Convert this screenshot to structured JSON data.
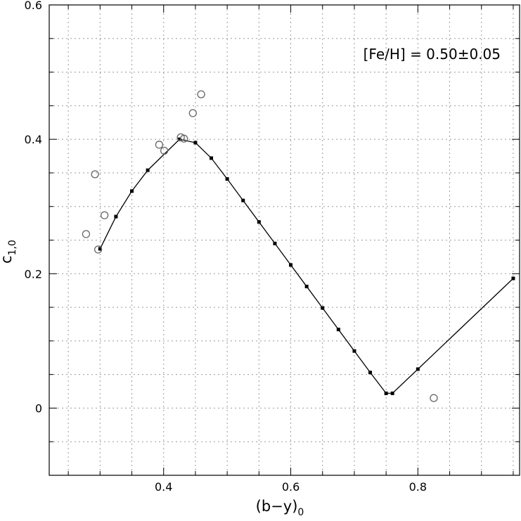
{
  "chart_data": {
    "type": "scatter",
    "annotation": "[Fe/H]  =  0.50±0.05",
    "xlabel": {
      "main": "(b−y)",
      "sub": "0"
    },
    "ylabel": {
      "main": "c",
      "sub": "1,0"
    },
    "xlim": [
      0.22,
      0.96
    ],
    "ylim": [
      -0.1,
      0.6
    ],
    "x_ticks": [
      0.4,
      0.6,
      0.8
    ],
    "x_tick_labels": [
      "0.4",
      "0.6",
      "0.8"
    ],
    "y_ticks": [
      0,
      0.2,
      0.4,
      0.6
    ],
    "y_tick_labels": [
      "0",
      "0.2",
      "0.4",
      "0.6"
    ],
    "grid": true,
    "series": [
      {
        "kind": "line-with-square-markers",
        "x": [
          0.3,
          0.325,
          0.35,
          0.375,
          0.425,
          0.45,
          0.475,
          0.5,
          0.525,
          0.55,
          0.575,
          0.6,
          0.625,
          0.65,
          0.675,
          0.7,
          0.725,
          0.75,
          0.76,
          0.8,
          0.95
        ],
        "y": [
          0.237,
          0.285,
          0.323,
          0.354,
          0.4,
          0.395,
          0.372,
          0.341,
          0.309,
          0.277,
          0.245,
          0.213,
          0.181,
          0.149,
          0.117,
          0.085,
          0.053,
          0.022,
          0.022,
          0.058,
          0.193
        ]
      },
      {
        "kind": "open-circles",
        "x": [
          0.278,
          0.292,
          0.297,
          0.307,
          0.393,
          0.401,
          0.427,
          0.432,
          0.446,
          0.459,
          0.825
        ],
        "y": [
          0.259,
          0.348,
          0.236,
          0.287,
          0.392,
          0.383,
          0.403,
          0.401,
          0.439,
          0.467,
          0.015
        ]
      }
    ]
  }
}
